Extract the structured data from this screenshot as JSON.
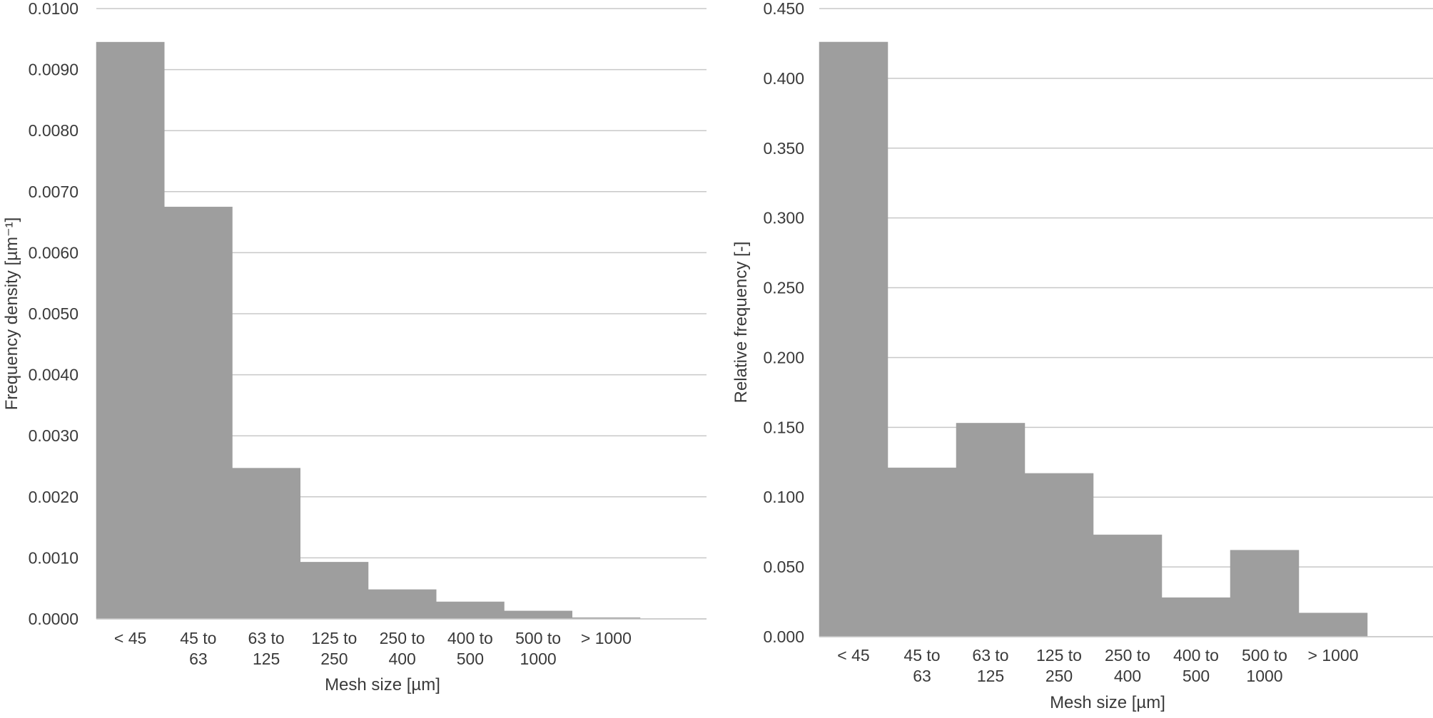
{
  "chart_data": [
    {
      "type": "bar",
      "categories": [
        [
          "< 45"
        ],
        [
          "45 to",
          "63"
        ],
        [
          "63 to",
          "125"
        ],
        [
          "125 to",
          "250"
        ],
        [
          "250 to",
          "400"
        ],
        [
          "400 to",
          "500"
        ],
        [
          "500 to",
          "1000"
        ],
        [
          "> 1000"
        ]
      ],
      "values": [
        0.00945,
        0.00675,
        0.00247,
        0.00093,
        0.00048,
        0.00028,
        0.00013,
        2e-05
      ],
      "xlabel": "Mesh size [µm]",
      "ylabel": "Frequency density [µm⁻¹]",
      "ylim": [
        0,
        0.01
      ],
      "yticks": [
        "0.0000",
        "0.0010",
        "0.0020",
        "0.0030",
        "0.0040",
        "0.0050",
        "0.0060",
        "0.0070",
        "0.0080",
        "0.0090",
        "0.0100"
      ],
      "grid": true,
      "bar_color": "#9e9e9e"
    },
    {
      "type": "bar",
      "categories": [
        [
          "< 45"
        ],
        [
          "45 to",
          "63"
        ],
        [
          "63 to",
          "125"
        ],
        [
          "125 to",
          "250"
        ],
        [
          "250 to",
          "400"
        ],
        [
          "400 to",
          "500"
        ],
        [
          "500 to",
          "1000"
        ],
        [
          "> 1000"
        ]
      ],
      "values": [
        0.426,
        0.121,
        0.153,
        0.117,
        0.073,
        0.028,
        0.062,
        0.017
      ],
      "xlabel": "Mesh size [µm]",
      "ylabel": "Relative frequency [-]",
      "ylim": [
        0,
        0.45
      ],
      "yticks": [
        "0.000",
        "0.050",
        "0.100",
        "0.150",
        "0.200",
        "0.250",
        "0.300",
        "0.350",
        "0.400",
        "0.450"
      ],
      "grid": true,
      "bar_color": "#9e9e9e"
    }
  ]
}
